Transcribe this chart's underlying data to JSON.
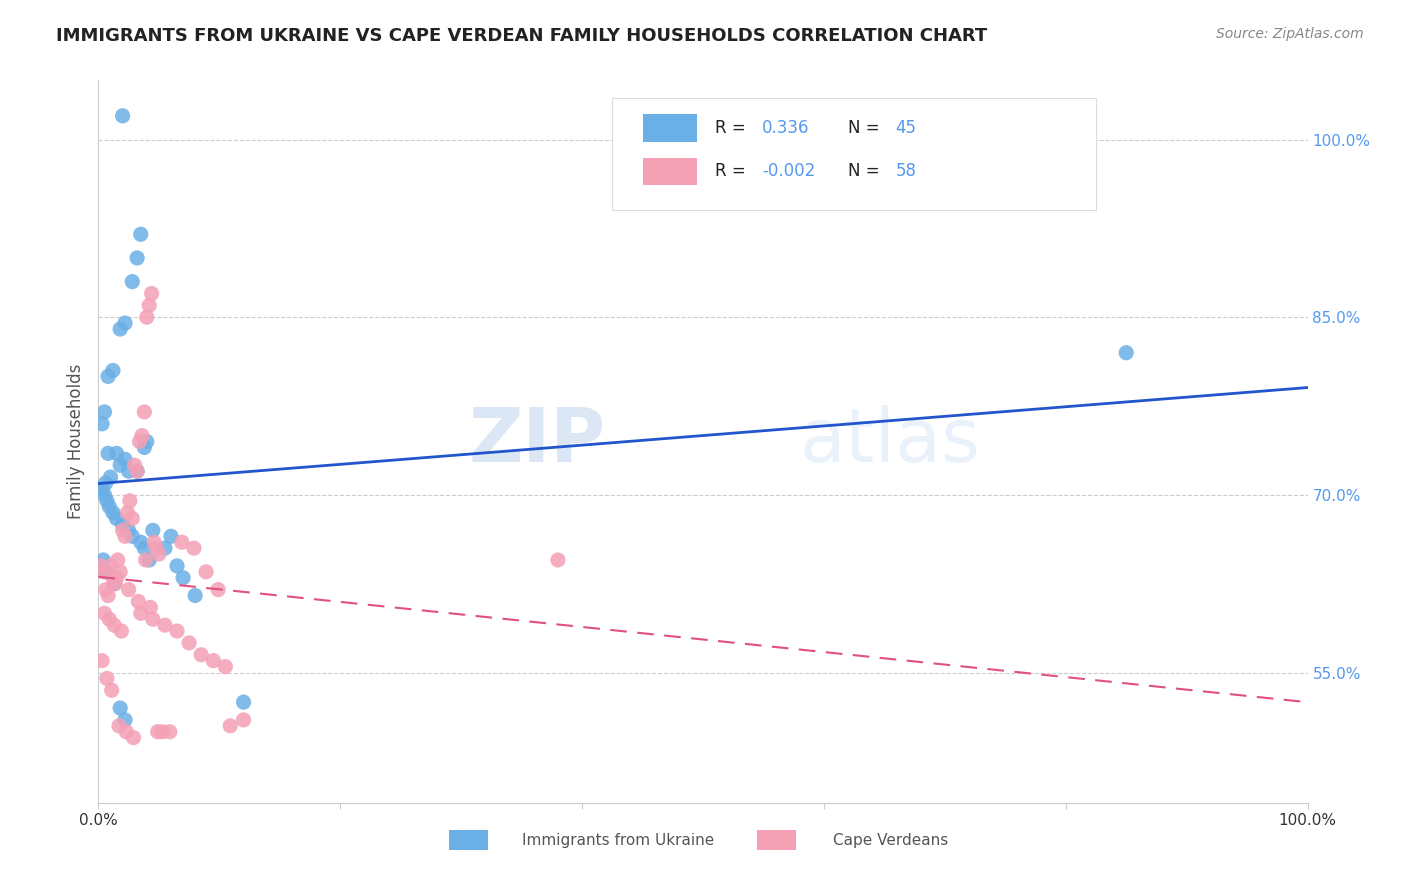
{
  "title": "IMMIGRANTS FROM UKRAINE VS CAPE VERDEAN FAMILY HOUSEHOLDS CORRELATION CHART",
  "source": "Source: ZipAtlas.com",
  "ylabel": "Family Households",
  "ylabel_right_ticks": [
    "100.0%",
    "85.0%",
    "70.0%",
    "55.0%"
  ],
  "ylabel_right_vals": [
    1.0,
    0.85,
    0.7,
    0.55
  ],
  "legend_ukraine_r": "0.336",
  "legend_ukraine_n": "45",
  "legend_cape_r": "-0.002",
  "legend_cape_n": "58",
  "ukraine_color": "#6aafe6",
  "cape_color": "#f4a0b5",
  "ukraine_line_color": "#2255cc",
  "cape_line_color": "#e05080",
  "watermark_zip": "ZIP",
  "watermark_atlas": "atlas",
  "ukraine_points_x": [
    0.02,
    0.035,
    0.032,
    0.028,
    0.022,
    0.018,
    0.012,
    0.008,
    0.005,
    0.003,
    0.008,
    0.015,
    0.022,
    0.018,
    0.025,
    0.032,
    0.04,
    0.038,
    0.01,
    0.006,
    0.003,
    0.005,
    0.007,
    0.009,
    0.012,
    0.015,
    0.02,
    0.025,
    0.028,
    0.035,
    0.038,
    0.042,
    0.045,
    0.055,
    0.06,
    0.065,
    0.07,
    0.08,
    0.12,
    0.85,
    0.004,
    0.006,
    0.013,
    0.018,
    0.022
  ],
  "ukraine_points_y": [
    1.02,
    0.92,
    0.9,
    0.88,
    0.845,
    0.84,
    0.805,
    0.8,
    0.77,
    0.76,
    0.735,
    0.735,
    0.73,
    0.725,
    0.72,
    0.72,
    0.745,
    0.74,
    0.715,
    0.71,
    0.705,
    0.7,
    0.695,
    0.69,
    0.685,
    0.68,
    0.675,
    0.67,
    0.665,
    0.66,
    0.655,
    0.645,
    0.67,
    0.655,
    0.665,
    0.64,
    0.63,
    0.615,
    0.525,
    0.82,
    0.645,
    0.635,
    0.625,
    0.52,
    0.51
  ],
  "cape_points_x": [
    0.002,
    0.004,
    0.006,
    0.008,
    0.01,
    0.012,
    0.014,
    0.016,
    0.018,
    0.02,
    0.022,
    0.024,
    0.026,
    0.028,
    0.03,
    0.032,
    0.034,
    0.036,
    0.038,
    0.04,
    0.042,
    0.044,
    0.046,
    0.048,
    0.05,
    0.015,
    0.025,
    0.035,
    0.045,
    0.055,
    0.065,
    0.075,
    0.085,
    0.095,
    0.105,
    0.003,
    0.007,
    0.011,
    0.017,
    0.023,
    0.029,
    0.039,
    0.049,
    0.059,
    0.069,
    0.079,
    0.089,
    0.099,
    0.109,
    0.12,
    0.005,
    0.009,
    0.013,
    0.019,
    0.033,
    0.043,
    0.053,
    0.38
  ],
  "cape_points_y": [
    0.64,
    0.635,
    0.62,
    0.615,
    0.64,
    0.63,
    0.625,
    0.645,
    0.635,
    0.67,
    0.665,
    0.685,
    0.695,
    0.68,
    0.725,
    0.72,
    0.745,
    0.75,
    0.77,
    0.85,
    0.86,
    0.87,
    0.66,
    0.655,
    0.65,
    0.63,
    0.62,
    0.6,
    0.595,
    0.59,
    0.585,
    0.575,
    0.565,
    0.56,
    0.555,
    0.56,
    0.545,
    0.535,
    0.505,
    0.5,
    0.495,
    0.645,
    0.5,
    0.5,
    0.66,
    0.655,
    0.635,
    0.62,
    0.505,
    0.51,
    0.6,
    0.595,
    0.59,
    0.585,
    0.61,
    0.605,
    0.5,
    0.645
  ]
}
